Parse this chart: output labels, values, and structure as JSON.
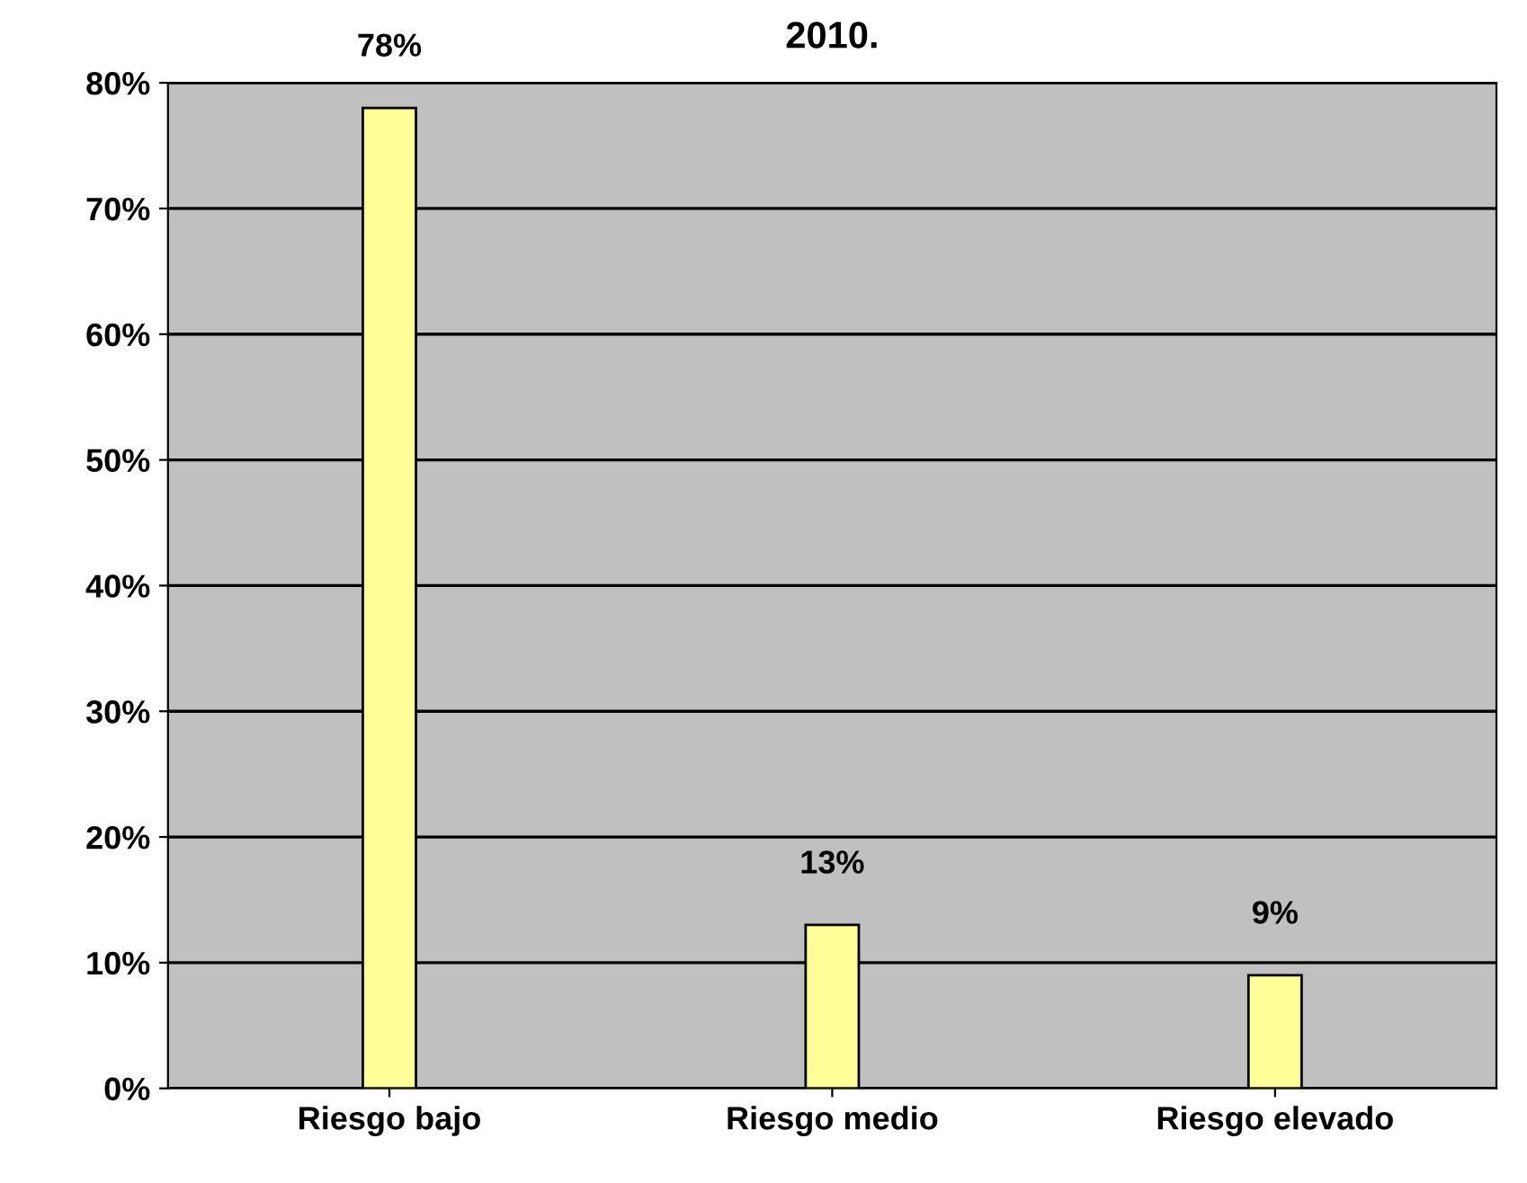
{
  "chart_data": {
    "type": "bar",
    "title": "2010.",
    "categories": [
      "Riesgo bajo",
      "Riesgo medio",
      "Riesgo elevado"
    ],
    "values": [
      78,
      13,
      9
    ],
    "color": "#ffff99",
    "value_labels": [
      "78%",
      "13%",
      "9%"
    ],
    "ylim": [
      0,
      80
    ],
    "yticks": [
      {
        "value": 0,
        "label": "0%"
      },
      {
        "value": 10,
        "label": "10%"
      },
      {
        "value": 20,
        "label": "20%"
      },
      {
        "value": 30,
        "label": "30%"
      },
      {
        "value": 40,
        "label": "40%"
      },
      {
        "value": 50,
        "label": "50%"
      },
      {
        "value": 60,
        "label": "60%"
      },
      {
        "value": 70,
        "label": "70%"
      },
      {
        "value": 80,
        "label": "80%"
      }
    ],
    "grid": "y",
    "legend": false
  }
}
